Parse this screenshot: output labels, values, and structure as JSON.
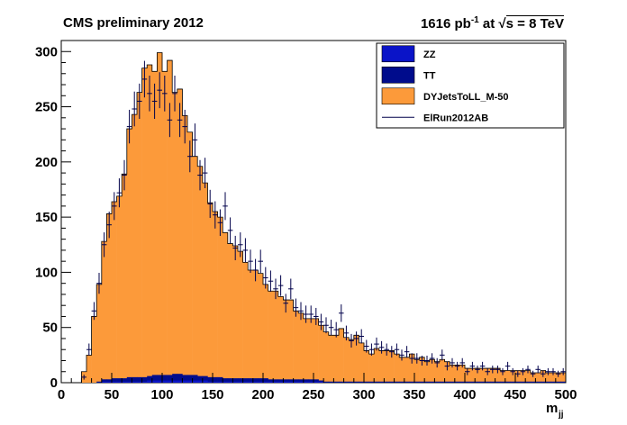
{
  "header": {
    "experiment": "CMS preliminary 2012",
    "lumi_value": "1616 pb",
    "lumi_exp": "-1",
    "at": "at",
    "sqrt_s": "s = 8 TeV"
  },
  "chart_data": {
    "type": "bar",
    "stacked": true,
    "title": "",
    "xlabel": "m_jj",
    "ylabel": "",
    "xlim": [
      0,
      500
    ],
    "ylim": [
      0,
      310
    ],
    "x_ticks": [
      0,
      50,
      100,
      150,
      200,
      250,
      300,
      350,
      400,
      450,
      500
    ],
    "y_ticks": [
      0,
      50,
      100,
      150,
      200,
      250,
      300
    ],
    "bin_start": 20,
    "bin_width": 5,
    "legend_position": "top-right",
    "colors": {
      "ZZ": "#0a14c8",
      "TT": "#000c8c",
      "DY": "#fc9a3a",
      "data": "#00004a"
    },
    "series": [
      {
        "name": "ZZ",
        "kind": "stack",
        "values": [
          0,
          0,
          0,
          0,
          1,
          1,
          1,
          1,
          1,
          1,
          1,
          1,
          1,
          2,
          2,
          2,
          2,
          2,
          2,
          2,
          2,
          2,
          2,
          2,
          2,
          1,
          1,
          1,
          1,
          1,
          1,
          1,
          1,
          1,
          1,
          1,
          1,
          1,
          1,
          1,
          1,
          1,
          1,
          1,
          1,
          1,
          1,
          1,
          0,
          0,
          0,
          0,
          0,
          0,
          0,
          0,
          0,
          0,
          0,
          0,
          0,
          0,
          0,
          0,
          0,
          0,
          0,
          0,
          0,
          0,
          0,
          0,
          0,
          0,
          0,
          0,
          0,
          0,
          0,
          0,
          0,
          0,
          0,
          0,
          0,
          0,
          0,
          0,
          0,
          0,
          0,
          0,
          0,
          0,
          0,
          0
        ]
      },
      {
        "name": "TT",
        "kind": "stack",
        "values": [
          0,
          0,
          0,
          1,
          2,
          2,
          3,
          3,
          3,
          4,
          4,
          4,
          4,
          4,
          5,
          5,
          5,
          5,
          6,
          6,
          5,
          5,
          5,
          4,
          4,
          4,
          4,
          4,
          3,
          3,
          3,
          3,
          3,
          3,
          3,
          3,
          3,
          2,
          2,
          2,
          2,
          2,
          2,
          2,
          2,
          2,
          2,
          1,
          1,
          1,
          1,
          1,
          1,
          1,
          1,
          1,
          1,
          1,
          1,
          1,
          1,
          1,
          1,
          1,
          1,
          1,
          1,
          1,
          1,
          1,
          1,
          1,
          1,
          1,
          1,
          1,
          1,
          1,
          1,
          1,
          1,
          1,
          1,
          1,
          1,
          1,
          1,
          1,
          1,
          1,
          1,
          1,
          1,
          1,
          1,
          1
        ]
      },
      {
        "name": "DYJetsToLL_M-50",
        "kind": "stack",
        "values": [
          10,
          25,
          60,
          88,
          125,
          150,
          160,
          165,
          185,
          225,
          238,
          258,
          280,
          282,
          275,
          292,
          275,
          285,
          255,
          258,
          235,
          220,
          198,
          190,
          175,
          158,
          150,
          145,
          132,
          122,
          120,
          115,
          105,
          98,
          98,
          95,
          85,
          80,
          80,
          75,
          72,
          72,
          62,
          60,
          55,
          55,
          55,
          50,
          45,
          42,
          42,
          48,
          40,
          38,
          42,
          35,
          28,
          25,
          30,
          28,
          28,
          28,
          25,
          22,
          22,
          25,
          20,
          22,
          18,
          20,
          18,
          20,
          18,
          15,
          15,
          15,
          12,
          12,
          12,
          12,
          12,
          12,
          12,
          10,
          10,
          10,
          10,
          10,
          10,
          8,
          8,
          10,
          8,
          8,
          8,
          8
        ]
      },
      {
        "name": "ElRun2012AB",
        "kind": "points",
        "values": [
          5,
          30,
          65,
          90,
          125,
          143,
          160,
          172,
          188,
          232,
          248,
          255,
          275,
          262,
          255,
          265,
          262,
          238,
          262,
          238,
          232,
          205,
          220,
          188,
          190,
          162,
          152,
          145,
          160,
          138,
          122,
          125,
          120,
          110,
          102,
          110,
          95,
          92,
          85,
          88,
          72,
          85,
          68,
          65,
          62,
          62,
          60,
          55,
          52,
          50,
          48,
          63,
          45,
          38,
          40,
          42,
          33,
          30,
          35,
          32,
          30,
          28,
          30,
          25,
          28,
          22,
          22,
          20,
          20,
          22,
          18,
          25,
          15,
          18,
          15,
          18,
          10,
          15,
          12,
          15,
          10,
          12,
          12,
          10,
          15,
          10,
          8,
          10,
          12,
          8,
          12,
          8,
          10,
          10,
          8,
          10
        ]
      }
    ]
  }
}
